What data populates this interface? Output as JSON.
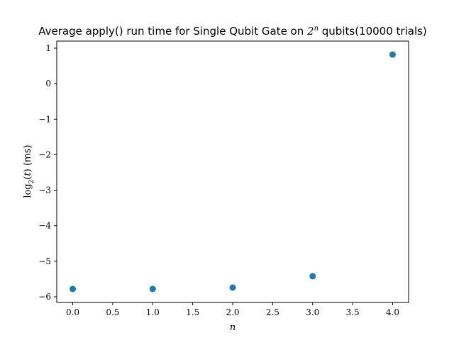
{
  "chart_data": {
    "type": "scatter",
    "title": {
      "prefix": "Average apply() run time for Single Qubit Gate on ",
      "base": "2",
      "exponent": "n",
      "suffix": " qubits(10000 trials)"
    },
    "xlabel": "n",
    "ylabel": {
      "fn": "log",
      "subscript": "2",
      "argument": "t",
      "unit": "(ms)"
    },
    "xlim": [
      -0.2,
      4.2
    ],
    "ylim": [
      -6.16,
      1.2
    ],
    "xticks": [
      0.0,
      0.5,
      1.0,
      1.5,
      2.0,
      2.5,
      3.0,
      3.5,
      4.0
    ],
    "xtick_labels": [
      "0.0",
      "0.5",
      "1.0",
      "1.5",
      "2.0",
      "2.5",
      "3.0",
      "3.5",
      "4.0"
    ],
    "yticks": [
      1,
      0,
      -1,
      -2,
      -3,
      -4,
      -5,
      -6
    ],
    "ytick_labels": [
      "1",
      "0",
      "−1",
      "−2",
      "−3",
      "−4",
      "−5",
      "−6"
    ],
    "series": [
      {
        "color": "#1f77b4",
        "x": [
          0,
          1,
          2,
          3,
          4
        ],
        "y": [
          -5.78,
          -5.78,
          -5.74,
          -5.42,
          0.82
        ]
      }
    ],
    "grid": false,
    "legend": "none"
  }
}
